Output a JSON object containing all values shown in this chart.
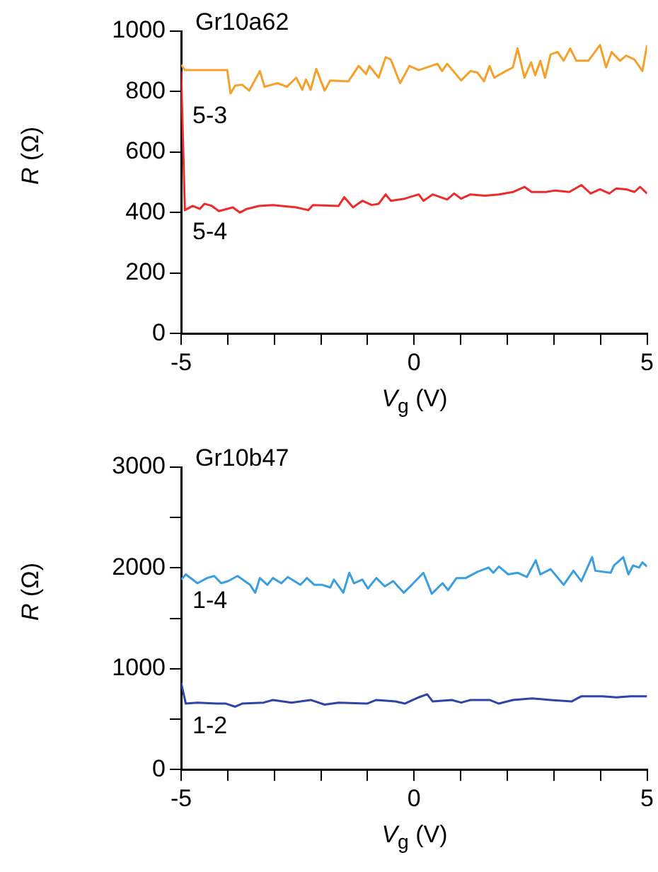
{
  "chart_data": [
    {
      "type": "line",
      "xlabel": "V$_{g}$ (V)",
      "ylabel": "R (Ω)",
      "annotations": [
        "Gr10a62"
      ],
      "xlim": [
        -5,
        5
      ],
      "ylim": [
        0,
        1000
      ],
      "xticks": [
        -5,
        {
          "value": -4,
          "label": null
        },
        {
          "value": -3,
          "label": null
        },
        {
          "value": -2,
          "label": null
        },
        {
          "value": -1,
          "label": null
        },
        0,
        {
          "value": 1,
          "label": null
        },
        {
          "value": 2,
          "label": null
        },
        {
          "value": 3,
          "label": null
        },
        {
          "value": 4,
          "label": null
        },
        5
      ],
      "yticks": [
        0,
        200,
        400,
        600,
        800,
        1000
      ],
      "series": [
        {
          "name": "5-3",
          "color": "#f5a02a",
          "x": [
            -5,
            -4.92,
            -4.01,
            -3.94,
            -3.84,
            -3.69,
            -3.54,
            -3.31,
            -3.21,
            -2.93,
            -2.73,
            -2.53,
            -2.4,
            -2.32,
            -2.22,
            -2.1,
            -1.92,
            -1.8,
            -1.41,
            -1.19,
            -1.03,
            -0.96,
            -0.76,
            -0.61,
            -0.5,
            -0.3,
            -0.1,
            0.1,
            0.5,
            0.6,
            0.71,
            1.01,
            1.21,
            1.36,
            1.5,
            1.62,
            1.72,
            1.97,
            2.12,
            2.22,
            2.37,
            2.51,
            2.6,
            2.71,
            2.81,
            2.93,
            3.08,
            3.21,
            3.35,
            3.48,
            3.74,
            3.99,
            4.12,
            4.24,
            4.42,
            4.55,
            4.73,
            4.9,
            5
          ],
          "values": [
            889,
            871,
            871,
            794,
            820,
            823,
            803,
            868,
            816,
            828,
            816,
            846,
            806,
            840,
            806,
            875,
            803,
            837,
            834,
            885,
            858,
            885,
            846,
            914,
            906,
            828,
            885,
            871,
            892,
            868,
            892,
            837,
            868,
            863,
            834,
            885,
            846,
            868,
            880,
            943,
            846,
            897,
            854,
            902,
            846,
            923,
            931,
            902,
            943,
            902,
            902,
            954,
            880,
            931,
            902,
            919,
            906,
            868,
            954
          ]
        },
        {
          "name": "5-4",
          "color": "#ee2b2b",
          "x": [
            -5,
            -4.92,
            -4.75,
            -4.6,
            -4.5,
            -4.34,
            -4.19,
            -3.89,
            -3.74,
            -3.59,
            -3.33,
            -3.03,
            -2.53,
            -2.27,
            -2.17,
            -1.62,
            -1.5,
            -1.31,
            -1.11,
            -0.91,
            -0.76,
            -0.61,
            -0.5,
            -0.2,
            0.1,
            0.2,
            0.4,
            0.71,
            0.86,
            1.01,
            1.21,
            1.52,
            1.82,
            2.12,
            2.37,
            2.52,
            2.83,
            3.03,
            3.33,
            3.59,
            3.79,
            3.99,
            4.19,
            4.34,
            4.55,
            4.73,
            4.85,
            5
          ],
          "values": [
            868,
            408,
            422,
            412,
            429,
            422,
            405,
            417,
            400,
            412,
            422,
            425,
            417,
            408,
            425,
            422,
            451,
            417,
            439,
            425,
            429,
            460,
            439,
            446,
            460,
            439,
            460,
            443,
            463,
            446,
            460,
            456,
            460,
            468,
            485,
            468,
            468,
            473,
            468,
            491,
            463,
            477,
            463,
            480,
            477,
            468,
            485,
            463
          ]
        }
      ]
    },
    {
      "type": "line",
      "xlabel": "V$_{g}$ (V)",
      "ylabel": "R (Ω)",
      "annotations": [
        "Gr10b47"
      ],
      "xlim": [
        -5,
        5
      ],
      "ylim": [
        0,
        3000
      ],
      "xticks": [
        -5,
        {
          "value": -4,
          "label": null
        },
        {
          "value": -3,
          "label": null
        },
        {
          "value": -2,
          "label": null
        },
        {
          "value": -1,
          "label": null
        },
        0,
        {
          "value": 1,
          "label": null
        },
        {
          "value": 2,
          "label": null
        },
        {
          "value": 3,
          "label": null
        },
        {
          "value": 4,
          "label": null
        },
        5
      ],
      "yticks": [
        0,
        {
          "value": 500,
          "label": null
        },
        1000,
        {
          "value": 1500,
          "label": null
        },
        2000,
        {
          "value": 2500,
          "label": null
        },
        3000
      ],
      "series": [
        {
          "name": "1-4",
          "color": "#3a9ee0",
          "x": [
            -5,
            -4.9,
            -4.65,
            -4.44,
            -4.29,
            -4.14,
            -3.99,
            -3.79,
            -3.52,
            -3.41,
            -3.31,
            -3.15,
            -3.03,
            -2.85,
            -2.71,
            -2.44,
            -2.3,
            -2.14,
            -1.97,
            -1.8,
            -1.72,
            -1.52,
            -1.39,
            -1.29,
            -1.11,
            -0.99,
            -0.81,
            -0.63,
            -0.45,
            -0.22,
            -0.05,
            0.2,
            0.38,
            0.61,
            0.73,
            0.91,
            1.11,
            1.36,
            1.6,
            1.7,
            1.82,
            2.02,
            2.22,
            2.42,
            2.61,
            2.71,
            2.93,
            3.21,
            3.42,
            3.59,
            3.82,
            3.89,
            4.22,
            4.29,
            4.49,
            4.6,
            4.7,
            4.83,
            4.9,
            5
          ],
          "values": [
            1884,
            1936,
            1848,
            1900,
            1920,
            1848,
            1869,
            1920,
            1832,
            1754,
            1900,
            1832,
            1900,
            1848,
            1910,
            1832,
            1900,
            1832,
            1832,
            1806,
            1884,
            1754,
            1952,
            1848,
            1884,
            1796,
            1900,
            1817,
            1869,
            1754,
            1832,
            1952,
            1744,
            1848,
            1780,
            1900,
            1900,
            1962,
            2004,
            1952,
            2014,
            1936,
            1952,
            1910,
            2076,
            1936,
            1988,
            1832,
            1972,
            1869,
            2107,
            1972,
            1952,
            2024,
            2107,
            1936,
            2024,
            2004,
            2055,
            2014
          ]
        },
        {
          "name": "1-2",
          "color": "#2f44a8",
          "x": [
            -5,
            -4.9,
            -4.65,
            -4.24,
            -4.04,
            -3.84,
            -3.69,
            -3.23,
            -3.03,
            -2.63,
            -2.22,
            -1.92,
            -1.62,
            -1.01,
            -0.81,
            -0.4,
            -0.2,
            0.1,
            0.28,
            0.4,
            0.81,
            1.01,
            1.21,
            1.62,
            1.82,
            2.12,
            2.53,
            2.93,
            3.38,
            3.59,
            4.04,
            4.34,
            4.65,
            5
          ],
          "values": [
            862,
            654,
            664,
            654,
            654,
            623,
            654,
            664,
            690,
            664,
            690,
            644,
            664,
            654,
            690,
            675,
            654,
            716,
            747,
            675,
            690,
            664,
            690,
            690,
            654,
            690,
            706,
            690,
            675,
            727,
            727,
            716,
            727,
            727
          ]
        }
      ]
    }
  ]
}
